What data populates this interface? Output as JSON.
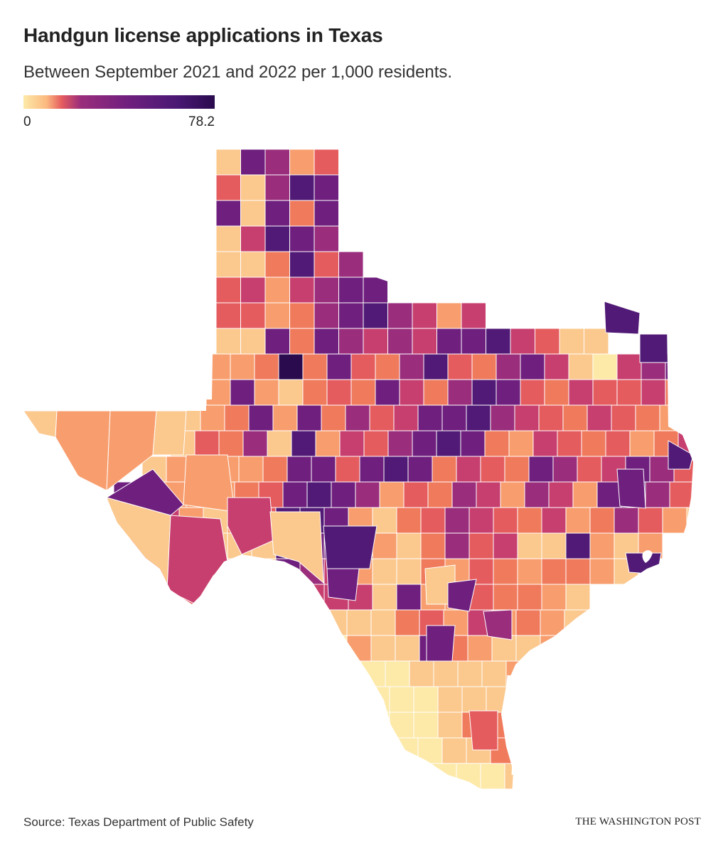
{
  "title": "Handgun license applications in Texas",
  "subtitle": "Between September 2021 and 2022 per 1,000 residents.",
  "legend": {
    "min_label": "0",
    "max_label": "78.2",
    "min_value": 0,
    "max_value": 78.2,
    "colors": [
      "#fde9a8",
      "#fbb97f",
      "#f4925f",
      "#e55c5f",
      "#c13a73",
      "#8b2479",
      "#5d1a7a",
      "#2b0a4d"
    ]
  },
  "source": "Source: Texas Department of Public Safety",
  "credit": "THE WASHINGTON POST",
  "map_data": {
    "region": "Texas counties",
    "metric": "applications per 1,000 residents",
    "range": [
      0,
      78.2
    ],
    "palette_levels": {
      "L0": "#fde9a8",
      "L1": "#fbc88e",
      "L2": "#f89e6e",
      "L3": "#f07a5c",
      "L4": "#e55c5f",
      "L5": "#c73f6f",
      "L6": "#9a2d7c",
      "L7": "#6f1f7e",
      "L8": "#501a76",
      "L9": "#2a0b4e"
    }
  }
}
